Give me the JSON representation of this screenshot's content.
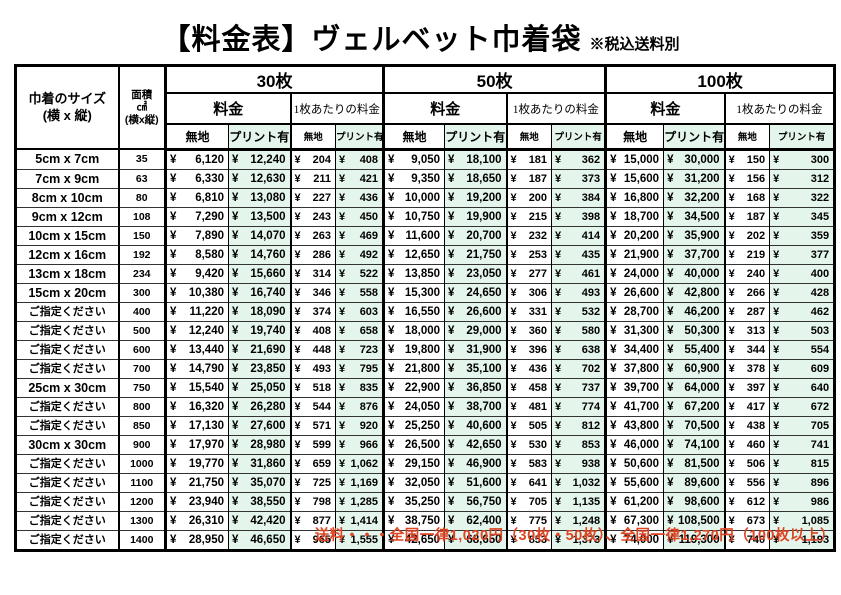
{
  "title": {
    "main": "【料金表】ヴェルベット巾着袋",
    "note": "※税込送料別"
  },
  "table": {
    "size_header": {
      "line1": "巾着のサイズ",
      "line2": "(横 x 縦)"
    },
    "area_header": {
      "line1": "面積",
      "line2": "㎠",
      "line3": "(横x縦)"
    },
    "quantity_groups": [
      {
        "label": "30枚"
      },
      {
        "label": "50枚"
      },
      {
        "label": "100枚"
      }
    ],
    "price_label": "料金",
    "per_piece_label": "1枚あたりの料金",
    "plain_label": "無地",
    "print_label": "プリント有",
    "currency": "¥",
    "rows": [
      {
        "size": "5cm x 7cm",
        "area": "35",
        "values": [
          "6,120",
          "12,240",
          "204",
          "408",
          "9,050",
          "18,100",
          "181",
          "362",
          "15,000",
          "30,000",
          "150",
          "300"
        ]
      },
      {
        "size": "7cm x 9cm",
        "area": "63",
        "values": [
          "6,330",
          "12,630",
          "211",
          "421",
          "9,350",
          "18,650",
          "187",
          "373",
          "15,600",
          "31,200",
          "156",
          "312"
        ]
      },
      {
        "size": "8cm x 10cm",
        "area": "80",
        "values": [
          "6,810",
          "13,080",
          "227",
          "436",
          "10,000",
          "19,200",
          "200",
          "384",
          "16,800",
          "32,200",
          "168",
          "322"
        ]
      },
      {
        "size": "9cm x 12cm",
        "area": "108",
        "values": [
          "7,290",
          "13,500",
          "243",
          "450",
          "10,750",
          "19,900",
          "215",
          "398",
          "18,700",
          "34,500",
          "187",
          "345"
        ]
      },
      {
        "size": "10cm x 15cm",
        "area": "150",
        "values": [
          "7,890",
          "14,070",
          "263",
          "469",
          "11,600",
          "20,700",
          "232",
          "414",
          "20,200",
          "35,900",
          "202",
          "359"
        ]
      },
      {
        "size": "12cm x 16cm",
        "area": "192",
        "values": [
          "8,580",
          "14,760",
          "286",
          "492",
          "12,650",
          "21,750",
          "253",
          "435",
          "21,900",
          "37,700",
          "219",
          "377"
        ]
      },
      {
        "size": "13cm x 18cm",
        "area": "234",
        "values": [
          "9,420",
          "15,660",
          "314",
          "522",
          "13,850",
          "23,050",
          "277",
          "461",
          "24,000",
          "40,000",
          "240",
          "400"
        ]
      },
      {
        "size": "15cm x 20cm",
        "area": "300",
        "values": [
          "10,380",
          "16,740",
          "346",
          "558",
          "15,300",
          "24,650",
          "306",
          "493",
          "26,600",
          "42,800",
          "266",
          "428"
        ]
      },
      {
        "size": "ご指定ください",
        "area": "400",
        "values": [
          "11,220",
          "18,090",
          "374",
          "603",
          "16,550",
          "26,600",
          "331",
          "532",
          "28,700",
          "46,200",
          "287",
          "462"
        ]
      },
      {
        "size": "ご指定ください",
        "area": "500",
        "values": [
          "12,240",
          "19,740",
          "408",
          "658",
          "18,000",
          "29,000",
          "360",
          "580",
          "31,300",
          "50,300",
          "313",
          "503"
        ]
      },
      {
        "size": "ご指定ください",
        "area": "600",
        "values": [
          "13,440",
          "21,690",
          "448",
          "723",
          "19,800",
          "31,900",
          "396",
          "638",
          "34,400",
          "55,400",
          "344",
          "554"
        ]
      },
      {
        "size": "ご指定ください",
        "area": "700",
        "values": [
          "14,790",
          "23,850",
          "493",
          "795",
          "21,800",
          "35,100",
          "436",
          "702",
          "37,800",
          "60,900",
          "378",
          "609"
        ]
      },
      {
        "size": "25cm x 30cm",
        "area": "750",
        "values": [
          "15,540",
          "25,050",
          "518",
          "835",
          "22,900",
          "36,850",
          "458",
          "737",
          "39,700",
          "64,000",
          "397",
          "640"
        ]
      },
      {
        "size": "ご指定ください",
        "area": "800",
        "values": [
          "16,320",
          "26,280",
          "544",
          "876",
          "24,050",
          "38,700",
          "481",
          "774",
          "41,700",
          "67,200",
          "417",
          "672"
        ]
      },
      {
        "size": "ご指定ください",
        "area": "850",
        "values": [
          "17,130",
          "27,600",
          "571",
          "920",
          "25,250",
          "40,600",
          "505",
          "812",
          "43,800",
          "70,500",
          "438",
          "705"
        ]
      },
      {
        "size": "30cm x 30cm",
        "area": "900",
        "values": [
          "17,970",
          "28,980",
          "599",
          "966",
          "26,500",
          "42,650",
          "530",
          "853",
          "46,000",
          "74,100",
          "460",
          "741"
        ]
      },
      {
        "size": "ご指定ください",
        "area": "1000",
        "values": [
          "19,770",
          "31,860",
          "659",
          "1,062",
          "29,150",
          "46,900",
          "583",
          "938",
          "50,600",
          "81,500",
          "506",
          "815"
        ]
      },
      {
        "size": "ご指定ください",
        "area": "1100",
        "values": [
          "21,750",
          "35,070",
          "725",
          "1,169",
          "32,050",
          "51,600",
          "641",
          "1,032",
          "55,600",
          "89,600",
          "556",
          "896"
        ]
      },
      {
        "size": "ご指定ください",
        "area": "1200",
        "values": [
          "23,940",
          "38,550",
          "798",
          "1,285",
          "35,250",
          "56,750",
          "705",
          "1,135",
          "61,200",
          "98,600",
          "612",
          "986"
        ]
      },
      {
        "size": "ご指定ください",
        "area": "1300",
        "values": [
          "26,310",
          "42,420",
          "877",
          "1,414",
          "38,750",
          "62,400",
          "775",
          "1,248",
          "67,300",
          "108,500",
          "673",
          "1,085"
        ]
      },
      {
        "size": "ご指定ください",
        "area": "1400",
        "values": [
          "28,950",
          "46,650",
          "965",
          "1,555",
          "42,650",
          "68,650",
          "853",
          "1,373",
          "74,000",
          "119,300",
          "740",
          "1,193"
        ]
      }
    ]
  },
  "footer": {
    "shipping_note": "送料・・・全国一律1,020円（30枚・50枚）、全国一律1,270円（100枚以上）"
  },
  "colors": {
    "print_column_bg": "#e4f5ec",
    "shipping_note_color": "#dd4524"
  }
}
